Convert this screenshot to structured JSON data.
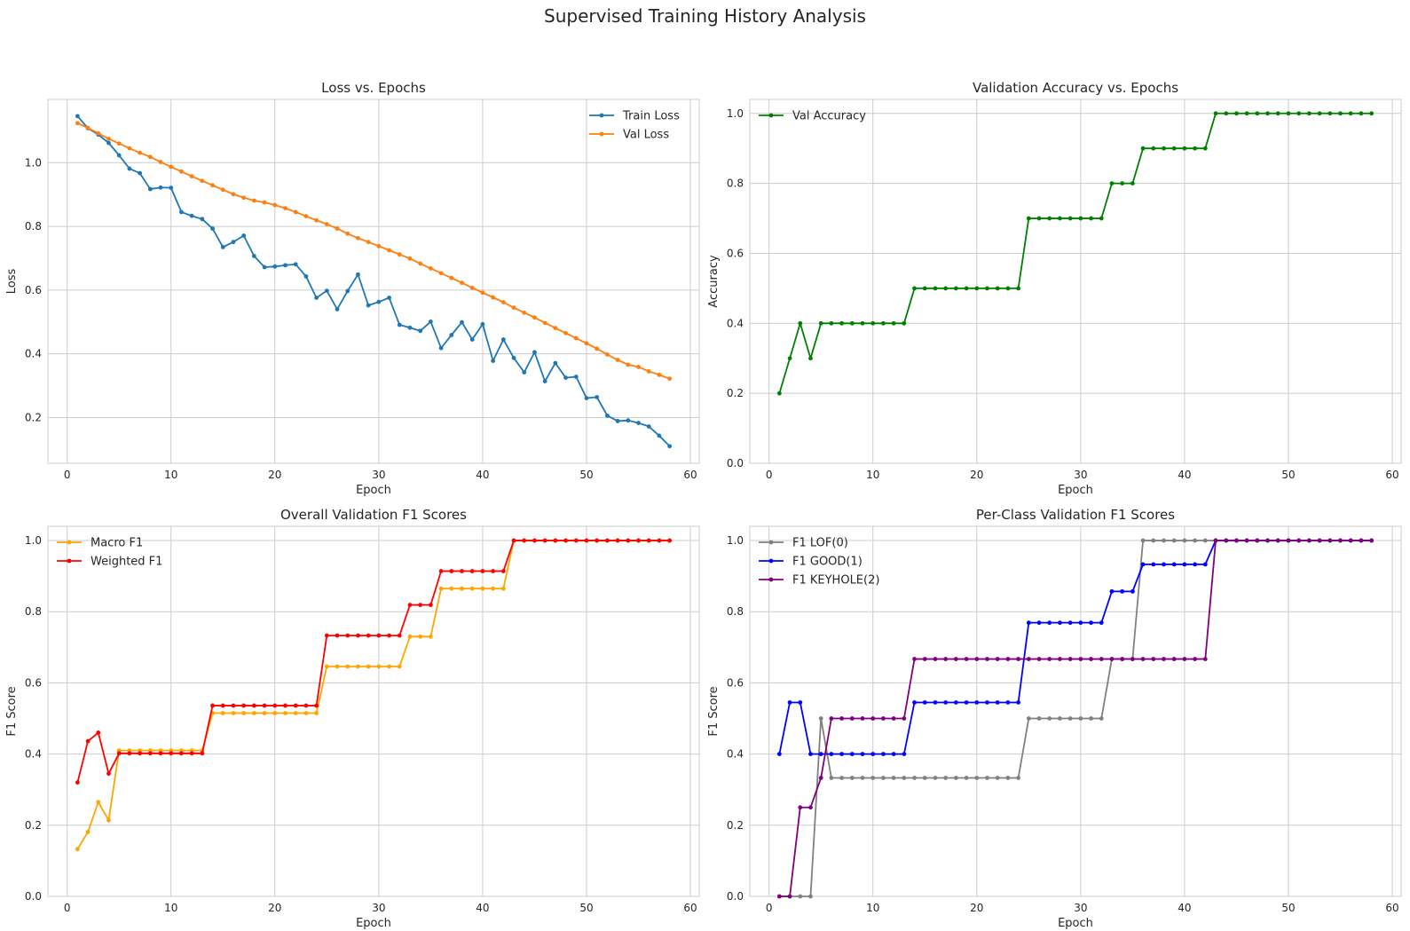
{
  "figure_title": "Supervised Training History Analysis",
  "chart_data": [
    {
      "type": "line",
      "title": "Loss vs. Epochs",
      "xlabel": "Epoch",
      "ylabel": "Loss",
      "xlim": [
        -1.85,
        60.85
      ],
      "ylim": [
        0.0565,
        1.1985
      ],
      "xticks": [
        0,
        10,
        20,
        30,
        40,
        50,
        60
      ],
      "yticks": [
        0.2,
        0.4,
        0.6,
        0.8,
        1.0
      ],
      "grid": true,
      "legend_position": "top-right",
      "series": [
        {
          "name": "Train Loss",
          "color": "#1f77b4",
          "values": [
            1.146,
            1.108,
            1.088,
            1.062,
            1.023,
            0.981,
            0.967,
            0.917,
            0.922,
            0.921,
            0.845,
            0.833,
            0.823,
            0.793,
            0.735,
            0.751,
            0.771,
            0.707,
            0.672,
            0.674,
            0.678,
            0.681,
            0.643,
            0.576,
            0.598,
            0.54,
            0.597,
            0.649,
            0.552,
            0.563,
            0.576,
            0.491,
            0.482,
            0.472,
            0.501,
            0.418,
            0.459,
            0.499,
            0.445,
            0.493,
            0.378,
            0.445,
            0.387,
            0.342,
            0.405,
            0.314,
            0.371,
            0.325,
            0.328,
            0.261,
            0.264,
            0.206,
            0.189,
            0.191,
            0.183,
            0.172,
            0.143,
            0.11
          ]
        },
        {
          "name": "Val Loss",
          "color": "#ff7f0e",
          "values": [
            1.124,
            1.109,
            1.092,
            1.075,
            1.06,
            1.045,
            1.031,
            1.018,
            1.002,
            0.987,
            0.972,
            0.957,
            0.943,
            0.929,
            0.915,
            0.901,
            0.89,
            0.881,
            0.875,
            0.867,
            0.857,
            0.845,
            0.832,
            0.819,
            0.807,
            0.793,
            0.777,
            0.763,
            0.751,
            0.738,
            0.725,
            0.712,
            0.699,
            0.683,
            0.668,
            0.653,
            0.638,
            0.623,
            0.607,
            0.592,
            0.577,
            0.562,
            0.545,
            0.529,
            0.514,
            0.497,
            0.481,
            0.465,
            0.449,
            0.433,
            0.416,
            0.398,
            0.381,
            0.366,
            0.359,
            0.345,
            0.334,
            0.322
          ]
        }
      ]
    },
    {
      "type": "line",
      "title": "Validation Accuracy vs. Epochs",
      "xlabel": "Epoch",
      "ylabel": "Accuracy",
      "xlim": [
        -1.85,
        60.85
      ],
      "ylim": [
        0.0,
        1.04
      ],
      "xticks": [
        0,
        10,
        20,
        30,
        40,
        50,
        60
      ],
      "yticks": [
        0.0,
        0.2,
        0.4,
        0.6,
        0.8,
        1.0
      ],
      "grid": true,
      "legend_position": "top-left",
      "series": [
        {
          "name": "Val Accuracy",
          "color": "#008000",
          "values": [
            0.2,
            0.3,
            0.4,
            0.3,
            0.4,
            0.4,
            0.4,
            0.4,
            0.4,
            0.4,
            0.4,
            0.4,
            0.4,
            0.5,
            0.5,
            0.5,
            0.5,
            0.5,
            0.5,
            0.5,
            0.5,
            0.5,
            0.5,
            0.5,
            0.7,
            0.7,
            0.7,
            0.7,
            0.7,
            0.7,
            0.7,
            0.7,
            0.8,
            0.8,
            0.8,
            0.9,
            0.9,
            0.9,
            0.9,
            0.9,
            0.9,
            0.9,
            1.0,
            1.0,
            1.0,
            1.0,
            1.0,
            1.0,
            1.0,
            1.0,
            1.0,
            1.0,
            1.0,
            1.0,
            1.0,
            1.0,
            1.0,
            1.0
          ]
        }
      ]
    },
    {
      "type": "line",
      "title": "Overall Validation F1 Scores",
      "xlabel": "Epoch",
      "ylabel": "F1 Score",
      "xlim": [
        -1.85,
        60.85
      ],
      "ylim": [
        0.0,
        1.04
      ],
      "xticks": [
        0,
        10,
        20,
        30,
        40,
        50,
        60
      ],
      "yticks": [
        0.0,
        0.2,
        0.4,
        0.6,
        0.8,
        1.0
      ],
      "grid": true,
      "legend_position": "top-left",
      "series": [
        {
          "name": "Macro F1",
          "color": "#ffa500",
          "values": [
            0.133,
            0.181,
            0.265,
            0.214,
            0.41,
            0.41,
            0.41,
            0.41,
            0.41,
            0.41,
            0.41,
            0.41,
            0.41,
            0.515,
            0.515,
            0.515,
            0.515,
            0.515,
            0.515,
            0.515,
            0.515,
            0.515,
            0.515,
            0.515,
            0.646,
            0.646,
            0.646,
            0.646,
            0.646,
            0.646,
            0.646,
            0.646,
            0.73,
            0.73,
            0.73,
            0.865,
            0.865,
            0.865,
            0.865,
            0.865,
            0.865,
            0.865,
            1.0,
            1.0,
            1.0,
            1.0,
            1.0,
            1.0,
            1.0,
            1.0,
            1.0,
            1.0,
            1.0,
            1.0,
            1.0,
            1.0,
            1.0,
            1.0
          ]
        },
        {
          "name": "Weighted F1",
          "color": "#ff0000",
          "values": [
            0.32,
            0.436,
            0.46,
            0.345,
            0.402,
            0.402,
            0.402,
            0.402,
            0.402,
            0.402,
            0.402,
            0.402,
            0.402,
            0.536,
            0.536,
            0.536,
            0.536,
            0.536,
            0.536,
            0.536,
            0.536,
            0.536,
            0.536,
            0.536,
            0.733,
            0.733,
            0.733,
            0.733,
            0.733,
            0.733,
            0.733,
            0.733,
            0.819,
            0.819,
            0.819,
            0.914,
            0.914,
            0.914,
            0.914,
            0.914,
            0.914,
            0.914,
            1.0,
            1.0,
            1.0,
            1.0,
            1.0,
            1.0,
            1.0,
            1.0,
            1.0,
            1.0,
            1.0,
            1.0,
            1.0,
            1.0,
            1.0,
            1.0
          ]
        }
      ]
    },
    {
      "type": "line",
      "title": "Per-Class Validation F1 Scores",
      "xlabel": "Epoch",
      "ylabel": "F1 Score",
      "xlim": [
        -1.85,
        60.85
      ],
      "ylim": [
        0.0,
        1.04
      ],
      "xticks": [
        0,
        10,
        20,
        30,
        40,
        50,
        60
      ],
      "yticks": [
        0.0,
        0.2,
        0.4,
        0.6,
        0.8,
        1.0
      ],
      "grid": true,
      "legend_position": "top-left",
      "series": [
        {
          "name": "F1 LOF(0)",
          "color": "#808080",
          "values": [
            0.0,
            0.0,
            0.0,
            0.0,
            0.5,
            0.333,
            0.333,
            0.333,
            0.333,
            0.333,
            0.333,
            0.333,
            0.333,
            0.333,
            0.333,
            0.333,
            0.333,
            0.333,
            0.333,
            0.333,
            0.333,
            0.333,
            0.333,
            0.333,
            0.5,
            0.5,
            0.5,
            0.5,
            0.5,
            0.5,
            0.5,
            0.5,
            0.667,
            0.667,
            0.667,
            1.0,
            1.0,
            1.0,
            1.0,
            1.0,
            1.0,
            1.0,
            1.0,
            1.0,
            1.0,
            1.0,
            1.0,
            1.0,
            1.0,
            1.0,
            1.0,
            1.0,
            1.0,
            1.0,
            1.0,
            1.0,
            1.0,
            1.0
          ]
        },
        {
          "name": "F1 GOOD(1)",
          "color": "#0000ff",
          "values": [
            0.4,
            0.545,
            0.545,
            0.4,
            0.4,
            0.4,
            0.4,
            0.4,
            0.4,
            0.4,
            0.4,
            0.4,
            0.4,
            0.545,
            0.545,
            0.545,
            0.545,
            0.545,
            0.545,
            0.545,
            0.545,
            0.545,
            0.545,
            0.545,
            0.769,
            0.769,
            0.769,
            0.769,
            0.769,
            0.769,
            0.769,
            0.769,
            0.857,
            0.857,
            0.857,
            0.933,
            0.933,
            0.933,
            0.933,
            0.933,
            0.933,
            0.933,
            1.0,
            1.0,
            1.0,
            1.0,
            1.0,
            1.0,
            1.0,
            1.0,
            1.0,
            1.0,
            1.0,
            1.0,
            1.0,
            1.0,
            1.0,
            1.0
          ]
        },
        {
          "name": "F1 KEYHOLE(2)",
          "color": "#800080",
          "values": [
            0.0,
            0.0,
            0.25,
            0.25,
            0.333,
            0.5,
            0.5,
            0.5,
            0.5,
            0.5,
            0.5,
            0.5,
            0.5,
            0.667,
            0.667,
            0.667,
            0.667,
            0.667,
            0.667,
            0.667,
            0.667,
            0.667,
            0.667,
            0.667,
            0.667,
            0.667,
            0.667,
            0.667,
            0.667,
            0.667,
            0.667,
            0.667,
            0.667,
            0.667,
            0.667,
            0.667,
            0.667,
            0.667,
            0.667,
            0.667,
            0.667,
            0.667,
            1.0,
            1.0,
            1.0,
            1.0,
            1.0,
            1.0,
            1.0,
            1.0,
            1.0,
            1.0,
            1.0,
            1.0,
            1.0,
            1.0,
            1.0,
            1.0
          ]
        }
      ]
    }
  ]
}
